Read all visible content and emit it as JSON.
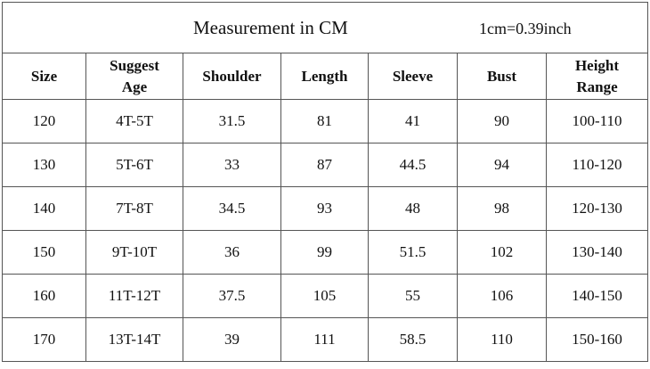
{
  "header": {
    "title": "Measurement in CM",
    "note": "1cm=0.39inch"
  },
  "table": {
    "columns": [
      "Size",
      "Suggest Age",
      "Shoulder",
      "Length",
      "Sleeve",
      "Bust",
      "Height Range"
    ],
    "rows": [
      [
        "120",
        "4T-5T",
        "31.5",
        "81",
        "41",
        "90",
        "100-110"
      ],
      [
        "130",
        "5T-6T",
        "33",
        "87",
        "44.5",
        "94",
        "110-120"
      ],
      [
        "140",
        "7T-8T",
        "34.5",
        "93",
        "48",
        "98",
        "120-130"
      ],
      [
        "150",
        "9T-10T",
        "36",
        "99",
        "51.5",
        "102",
        "130-140"
      ],
      [
        "160",
        "11T-12T",
        "37.5",
        "105",
        "55",
        "106",
        "140-150"
      ],
      [
        "170",
        "13T-14T",
        "39",
        "111",
        "58.5",
        "110",
        "150-160"
      ]
    ]
  }
}
